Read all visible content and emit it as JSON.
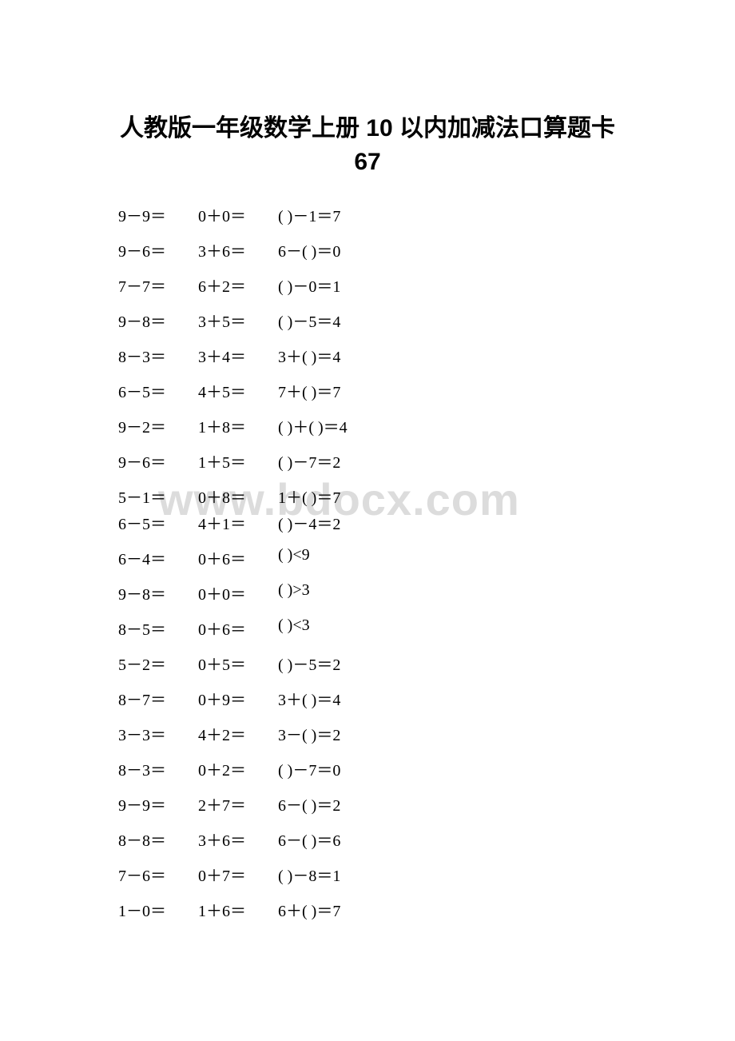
{
  "title_line1": "人教版一年级数学上册 10 以内加减法口算题卡",
  "title_line2": "67",
  "watermark": "www.bdocx.com",
  "rows": [
    {
      "c1": "9－9＝",
      "c2": "0＋0＝",
      "c3": "( )－1＝7"
    },
    {
      "c1": "9－6＝",
      "c2": "3＋6＝",
      "c3": "6－( )＝0"
    },
    {
      "c1": "7－7＝",
      "c2": "6＋2＝",
      "c3": "( )－0＝1"
    },
    {
      "c1": "9－8＝",
      "c2": "3＋5＝",
      "c3": "( )－5＝4"
    },
    {
      "c1": "8－3＝",
      "c2": "3＋4＝",
      "c3": "3＋( )＝4"
    },
    {
      "c1": "6－5＝",
      "c2": "4＋5＝",
      "c3": "7＋( )＝7"
    },
    {
      "c1": "9－2＝",
      "c2": "1＋8＝",
      "c3": "( )＋( )＝4"
    },
    {
      "c1": "9－6＝",
      "c2": "1＋5＝",
      "c3": "( )－7＝2"
    },
    {
      "c1": "5－1＝",
      "c2": "0＋8＝",
      "c3": "1＋( )＝7",
      "tight": true
    },
    {
      "c1": "6－5＝",
      "c2": "4＋1＝",
      "c3": "( )－4＝2"
    },
    {
      "c1": "6－4＝",
      "c2": "0＋6＝",
      "c3": "( )<9"
    },
    {
      "c1": "9－8＝",
      "c2": "0＋0＝",
      "c3": "( )>3"
    },
    {
      "c1": "8－5＝",
      "c2": "0＋6＝",
      "c3": "( )<3"
    },
    {
      "c1": "5－2＝",
      "c2": "0＋5＝",
      "c3": "( )－5＝2"
    },
    {
      "c1": "8－7＝",
      "c2": "0＋9＝",
      "c3": "3＋( )＝4"
    },
    {
      "c1": "3－3＝",
      "c2": "4＋2＝",
      "c3": "3－( )＝2"
    },
    {
      "c1": "8－3＝",
      "c2": "0＋2＝",
      "c3": "( )－7＝0"
    },
    {
      "c1": "9－9＝",
      "c2": "2＋7＝",
      "c3": "6－( )＝2"
    },
    {
      "c1": "8－8＝",
      "c2": "3＋6＝",
      "c3": "6－( )＝6"
    },
    {
      "c1": "7－6＝",
      "c2": "0＋7＝",
      "c3": "( )－8＝1"
    },
    {
      "c1": "1－0＝",
      "c2": "1＋6＝",
      "c3": "6＋( )＝7"
    }
  ]
}
